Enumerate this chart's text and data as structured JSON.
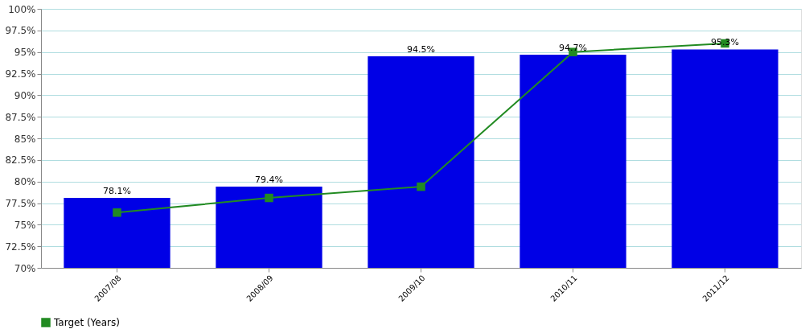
{
  "chart_data": {
    "type": "bar",
    "categories": [
      "2007/08",
      "2008/09",
      "2009/10",
      "2010/11",
      "2011/12"
    ],
    "series": [
      {
        "color": "#0000e6",
        "values": [
          78.1,
          79.4,
          94.5,
          94.7,
          95.3
        ],
        "value_labels": [
          "78.1%",
          "79.4%",
          "94.5%",
          "94.7%",
          "95.3%"
        ]
      },
      {
        "type": "line",
        "name": "Target (Years)",
        "color": "#228b22",
        "values": [
          76.4,
          78.1,
          79.4,
          95.0,
          96.0
        ],
        "marker": "square",
        "line_style": "solid"
      }
    ],
    "ylim": [
      70,
      100
    ],
    "yticks": [
      {
        "value": 70,
        "label": "70%"
      },
      {
        "value": 72.5,
        "label": "72.5%"
      },
      {
        "value": 75,
        "label": "75%"
      },
      {
        "value": 77.5,
        "label": "77.5%"
      },
      {
        "value": 80,
        "label": "80%"
      },
      {
        "value": 82.5,
        "label": "82.5%"
      },
      {
        "value": 85,
        "label": "85%"
      },
      {
        "value": 87.5,
        "label": "87.5%"
      },
      {
        "value": 90,
        "label": "90%"
      },
      {
        "value": 92.5,
        "label": "92.5%"
      },
      {
        "value": 95,
        "label": "95%"
      },
      {
        "value": 97.5,
        "label": "97.5%"
      },
      {
        "value": 100,
        "label": "100%"
      }
    ],
    "grid": "y",
    "legend": "bottom"
  }
}
